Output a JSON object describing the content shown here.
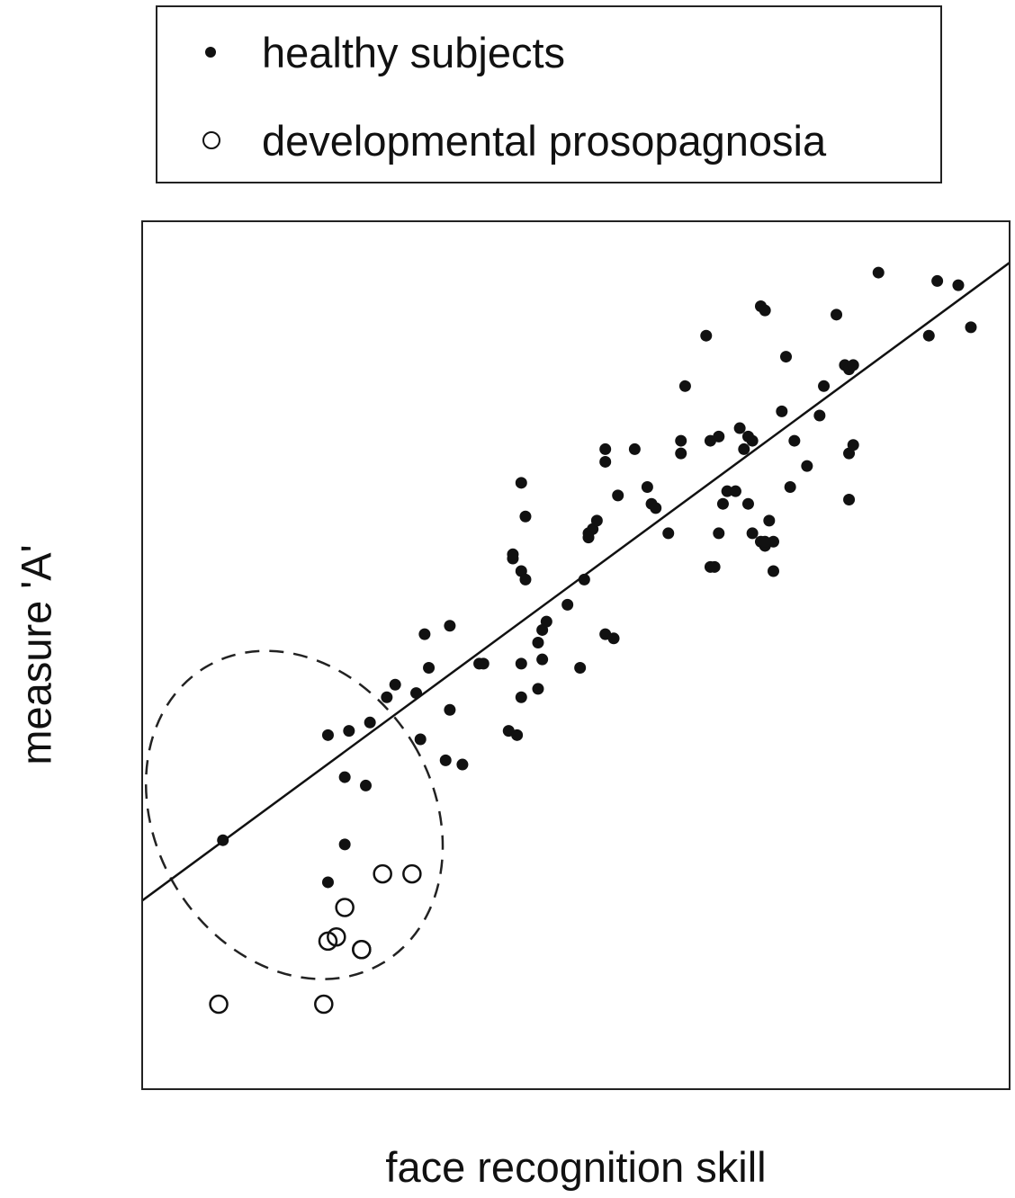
{
  "legend": {
    "items": [
      {
        "label": "healthy subjects",
        "marker": "filled-circle"
      },
      {
        "label": "developmental prosopagnosia",
        "marker": "open-circle"
      }
    ]
  },
  "chart_data": {
    "type": "scatter",
    "xlabel": "face recognition skill",
    "ylabel": "measure 'A'",
    "xlim": [
      0,
      100
    ],
    "ylim": [
      0,
      100
    ],
    "ticks": "none",
    "grid": false,
    "legend_position": "above",
    "colors": {
      "points": "#111111",
      "line": "#111111",
      "ellipse": "#222222"
    },
    "series": [
      {
        "name": "healthy subjects",
        "marker": "filled",
        "points": [
          [
            8.0,
            28.0
          ],
          [
            20.5,
            23.0
          ],
          [
            22.5,
            27.5
          ],
          [
            25.0,
            34.5
          ],
          [
            22.5,
            35.5
          ],
          [
            20.5,
            40.5
          ],
          [
            23.0,
            41.0
          ],
          [
            25.5,
            42.0
          ],
          [
            27.5,
            45.0
          ],
          [
            28.5,
            46.5
          ],
          [
            31.0,
            45.5
          ],
          [
            32.0,
            52.5
          ],
          [
            32.5,
            48.5
          ],
          [
            35.0,
            53.5
          ],
          [
            31.5,
            40.0
          ],
          [
            35.0,
            43.5
          ],
          [
            34.5,
            37.5
          ],
          [
            36.5,
            37.0
          ],
          [
            38.5,
            49.0
          ],
          [
            39.0,
            49.0
          ],
          [
            42.0,
            41.0
          ],
          [
            43.0,
            40.5
          ],
          [
            42.5,
            61.5
          ],
          [
            42.5,
            62.0
          ],
          [
            43.5,
            60.0
          ],
          [
            44.0,
            59.0
          ],
          [
            43.5,
            70.5
          ],
          [
            44.0,
            66.5
          ],
          [
            43.5,
            49.0
          ],
          [
            43.5,
            45.0
          ],
          [
            45.5,
            51.5
          ],
          [
            46.0,
            53.0
          ],
          [
            46.5,
            54.0
          ],
          [
            46.0,
            49.5
          ],
          [
            45.5,
            46.0
          ],
          [
            49.0,
            56.0
          ],
          [
            51.0,
            59.0
          ],
          [
            51.5,
            64.5
          ],
          [
            52.0,
            65.0
          ],
          [
            52.5,
            66.0
          ],
          [
            51.5,
            64.0
          ],
          [
            50.5,
            48.5
          ],
          [
            53.5,
            52.5
          ],
          [
            54.5,
            52.0
          ],
          [
            53.5,
            73.0
          ],
          [
            53.5,
            74.5
          ],
          [
            55.0,
            69.0
          ],
          [
            57.0,
            74.5
          ],
          [
            58.5,
            70.0
          ],
          [
            59.0,
            68.0
          ],
          [
            59.5,
            67.5
          ],
          [
            61.0,
            64.5
          ],
          [
            62.5,
            75.5
          ],
          [
            62.5,
            74.0
          ],
          [
            63.0,
            82.0
          ],
          [
            65.5,
            88.0
          ],
          [
            66.0,
            75.5
          ],
          [
            67.0,
            76.0
          ],
          [
            66.0,
            60.5
          ],
          [
            66.5,
            60.5
          ],
          [
            67.0,
            64.5
          ],
          [
            67.5,
            68.0
          ],
          [
            68.0,
            69.5
          ],
          [
            69.0,
            69.5
          ],
          [
            69.5,
            77.0
          ],
          [
            70.5,
            76.0
          ],
          [
            70.0,
            74.5
          ],
          [
            70.5,
            68.0
          ],
          [
            71.0,
            64.5
          ],
          [
            72.0,
            63.5
          ],
          [
            72.5,
            63.0
          ],
          [
            73.0,
            66.0
          ],
          [
            73.5,
            63.5
          ],
          [
            72.5,
            63.5
          ],
          [
            73.5,
            60.0
          ],
          [
            71.0,
            75.5
          ],
          [
            72.0,
            91.5
          ],
          [
            72.5,
            91.0
          ],
          [
            75.0,
            85.5
          ],
          [
            75.5,
            70.0
          ],
          [
            74.5,
            79.0
          ],
          [
            76.0,
            75.5
          ],
          [
            77.5,
            72.5
          ],
          [
            79.5,
            82.0
          ],
          [
            79.0,
            78.5
          ],
          [
            81.0,
            90.5
          ],
          [
            82.0,
            84.5
          ],
          [
            82.5,
            84.0
          ],
          [
            83.0,
            84.5
          ],
          [
            82.5,
            74.0
          ],
          [
            83.0,
            75.0
          ],
          [
            82.5,
            68.5
          ],
          [
            86.0,
            95.5
          ],
          [
            92.0,
            88.0
          ],
          [
            93.0,
            94.5
          ],
          [
            95.5,
            94.0
          ],
          [
            97.0,
            89.0
          ]
        ]
      },
      {
        "name": "developmental prosopagnosia",
        "marker": "open",
        "points": [
          [
            7.5,
            8.5
          ],
          [
            20.0,
            8.5
          ],
          [
            20.5,
            16.0
          ],
          [
            21.5,
            16.5
          ],
          [
            22.5,
            20.0
          ],
          [
            24.5,
            15.0
          ],
          [
            24.5,
            15.0
          ],
          [
            27.0,
            24.0
          ],
          [
            30.5,
            24.0
          ]
        ]
      }
    ],
    "fit_line": {
      "type": "linear",
      "from": [
        0,
        22.0
      ],
      "to": [
        100,
        95.5
      ]
    },
    "annotations": [
      {
        "type": "dashed-ellipse",
        "center": [
          16.5,
          31.0
        ],
        "radii": [
          16.5,
          20.5
        ],
        "rotation_deg": -31
      }
    ]
  }
}
